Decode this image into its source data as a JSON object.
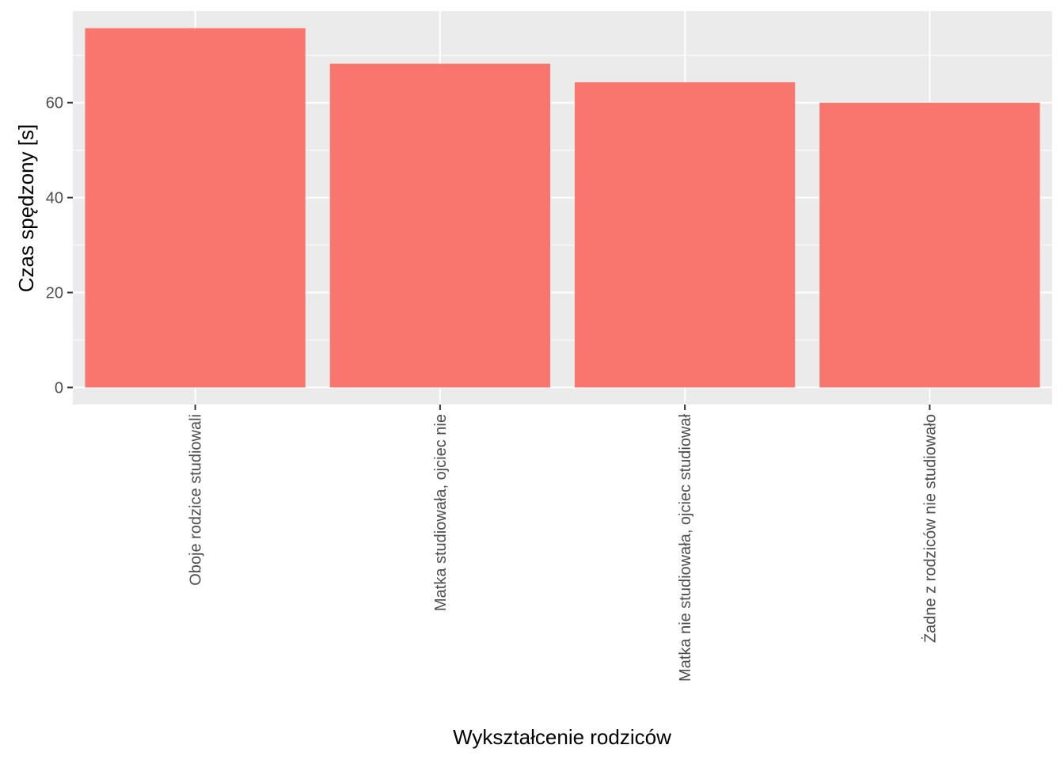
{
  "chart_data": {
    "type": "bar",
    "title": "",
    "xlabel": "Wykształcenie rodziców",
    "ylabel": "Czas spędzony [s]",
    "categories": [
      "Oboje rodzice studiowali",
      "Matka studiowała, ojciec nie",
      "Matka nie studiowała, ojciec studiował",
      "Żadne z rodziców nie studiowało"
    ],
    "values": [
      75.7,
      68.2,
      64.3,
      60.0
    ],
    "ylim": [
      -3.6,
      79.3
    ],
    "yticks": [
      0,
      20,
      40,
      60
    ],
    "ytick_labels": [
      "0",
      "20",
      "40",
      "60"
    ],
    "grid": true,
    "legend": "none",
    "colors": {
      "bar": "#F8766D",
      "panel": "#EBEBEB",
      "grid": "#FFFFFF",
      "tick": "#333333"
    }
  }
}
